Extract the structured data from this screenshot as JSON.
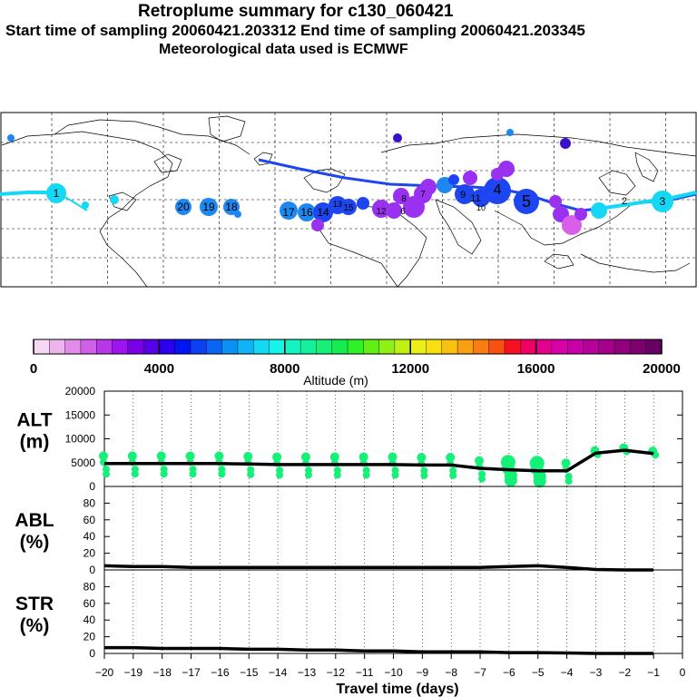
{
  "header": {
    "title": "Retroplume summary for c130_060421",
    "sampling": "Start time of sampling 20060421.203312      End time of sampling 20060421.203345",
    "met": "Meteorological data used is ECMWF"
  },
  "colorbar": {
    "tick_labels": [
      "0",
      "4000",
      "8000",
      "12000",
      "16000",
      "20000"
    ],
    "label": "Altitude (m)",
    "colors": [
      "#f6d8f6",
      "#eeb4ee",
      "#e08ce8",
      "#d060e8",
      "#b838e8",
      "#9c14f0",
      "#7a00e8",
      "#5600e8",
      "#2c00ee",
      "#0014f4",
      "#0c40f4",
      "#0c64f4",
      "#0c90f4",
      "#10b4f4",
      "#14d8f4",
      "#14f4e8",
      "#14f4c0",
      "#14f09c",
      "#14f078",
      "#14ec50",
      "#30f028",
      "#60f014",
      "#90f014",
      "#c0f014",
      "#ecf014",
      "#f8e010",
      "#f8c010",
      "#f8a010",
      "#f87c10",
      "#f85010",
      "#f81020",
      "#f00064",
      "#e4008c",
      "#d800a8",
      "#c800a8",
      "#b8009c",
      "#a4008c",
      "#90007c",
      "#7c0070",
      "#680064"
    ]
  },
  "map": {
    "particle_labels": [
      "1",
      "2",
      "3",
      "4",
      "5",
      "6",
      "7",
      "8",
      "9",
      "10",
      "11",
      "12",
      "13",
      "14",
      "15",
      "16",
      "17",
      "18",
      "19",
      "20"
    ],
    "colors": {
      "pink": "#d860e8",
      "violet": "#9a30f0",
      "blue": "#1e46f0",
      "midblue": "#1e88f0",
      "cyan": "#14d8f4",
      "dark": "#3a10c8"
    }
  },
  "chart_data": {
    "type": "line",
    "xlabel": "Travel time (days)",
    "x_tick_labels": [
      "-20",
      "-19",
      "-18",
      "-17",
      "-16",
      "-15",
      "-14",
      "-13",
      "-12",
      "-11",
      "-10",
      "-9",
      "-8",
      "-7",
      "-6",
      "-5",
      "-4",
      "-3",
      "-2",
      "-1",
      "0"
    ],
    "x_range": [
      -20,
      0
    ],
    "panels": [
      {
        "name": "ALT",
        "label_line1": "ALT",
        "label_line2": "(m)",
        "ylim": [
          0,
          20000
        ],
        "y_tick_labels": [
          "0",
          "5000",
          "10000",
          "15000",
          "20000"
        ],
        "x": [
          -20,
          -19,
          -18,
          -17,
          -16,
          -15,
          -14,
          -13,
          -12,
          -11,
          -10,
          -9,
          -8,
          -7,
          -6,
          -5,
          -4,
          -3,
          -2,
          -1
        ],
        "values": [
          4800,
          4800,
          4800,
          4800,
          4800,
          4700,
          4600,
          4600,
          4600,
          4600,
          4600,
          4500,
          4500,
          3800,
          3500,
          3300,
          3300,
          7000,
          7600,
          6900
        ],
        "cluster_color": "#14f078"
      },
      {
        "name": "ABL",
        "label_line1": "ABL",
        "label_line2": "(%)",
        "ylim": [
          0,
          100
        ],
        "y_tick_labels": [
          "0",
          "20",
          "40",
          "60",
          "80"
        ],
        "x": [
          -20,
          -19,
          -18,
          -17,
          -16,
          -15,
          -14,
          -13,
          -12,
          -11,
          -10,
          -9,
          -8,
          -7,
          -6,
          -5,
          -4,
          -3,
          -2,
          -1
        ],
        "values": [
          5,
          4,
          4,
          3,
          3,
          3,
          3,
          3,
          3,
          3,
          3,
          3,
          3,
          3,
          4,
          5,
          3,
          0.5,
          0,
          0
        ]
      },
      {
        "name": "STR",
        "label_line1": "STR",
        "label_line2": "(%)",
        "ylim": [
          0,
          100
        ],
        "y_tick_labels": [
          "0",
          "20",
          "40",
          "60",
          "80"
        ],
        "x": [
          -20,
          -19,
          -18,
          -17,
          -16,
          -15,
          -14,
          -13,
          -12,
          -11,
          -10,
          -9,
          -8,
          -7,
          -6,
          -5,
          -4,
          -3,
          -2,
          -1
        ],
        "values": [
          7,
          7,
          6,
          6,
          6,
          5,
          5,
          4,
          4,
          3,
          3,
          2,
          2,
          2,
          1,
          1,
          0.5,
          0,
          0,
          0
        ]
      }
    ]
  }
}
